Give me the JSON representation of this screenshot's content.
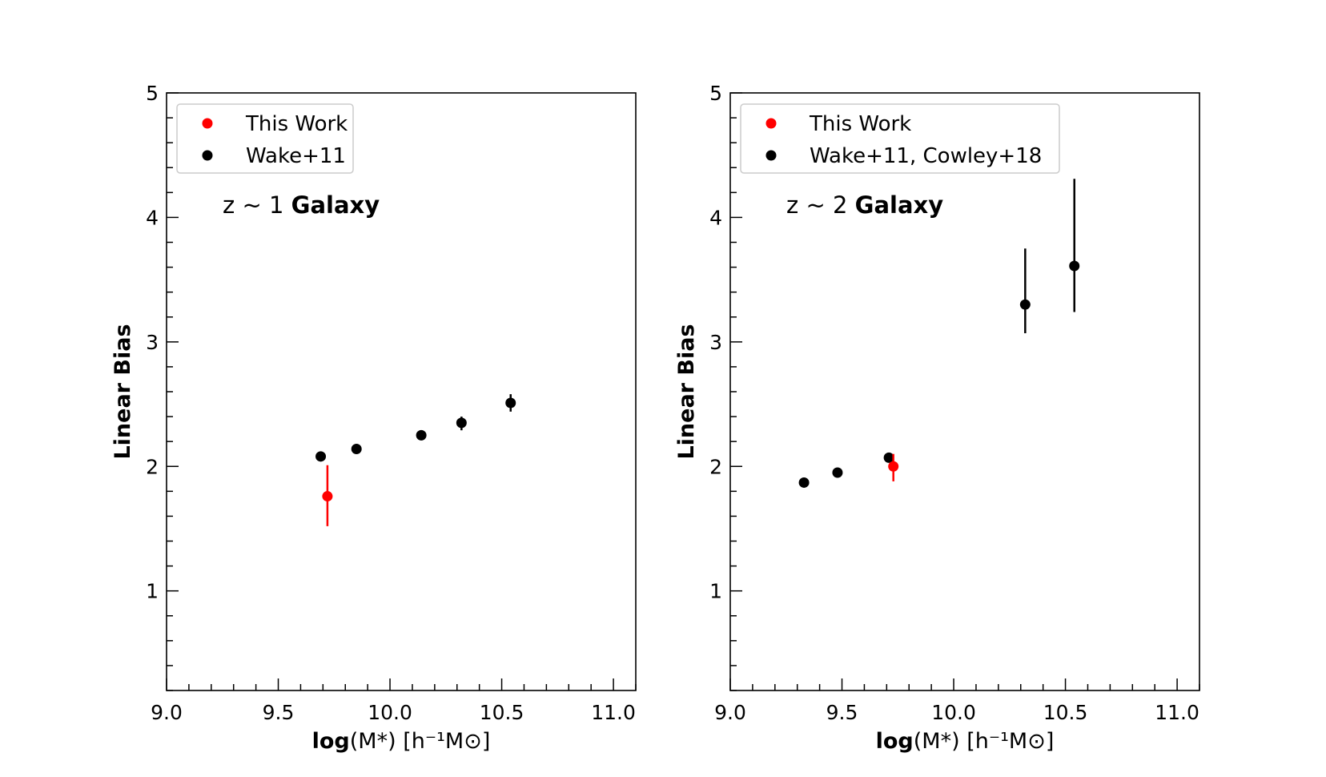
{
  "figure": {
    "background": "#ffffff"
  },
  "chart_data": [
    {
      "type": "scatter",
      "panel": "left",
      "annotation_prefix": "z ~ 1",
      "annotation_bold": "Galaxy",
      "xlabel_bold": "log",
      "xlabel_rest": "(M*) [h⁻¹M⊙]",
      "ylabel": "Linear Bias",
      "xlim": [
        9.0,
        11.1
      ],
      "ylim": [
        0.2,
        5.0
      ],
      "xticks": [
        9.0,
        9.5,
        10.0,
        10.5,
        11.0
      ],
      "xtick_labels": [
        "9.0",
        "9.5",
        "10.0",
        "10.5",
        "11.0"
      ],
      "yticks": [
        1,
        2,
        3,
        4,
        5
      ],
      "ytick_labels": [
        "1",
        "2",
        "3",
        "4",
        "5"
      ],
      "legend_placement": "top-left",
      "series": [
        {
          "name": "This Work",
          "color": "#ff0000",
          "points": [
            {
              "x": 9.72,
              "y": 1.76,
              "yerr_low": 0.24,
              "yerr_high": 0.25
            }
          ]
        },
        {
          "name": "Wake+11",
          "color": "#000000",
          "points": [
            {
              "x": 9.69,
              "y": 2.08,
              "yerr_low": 0.02,
              "yerr_high": 0.02
            },
            {
              "x": 9.85,
              "y": 2.14,
              "yerr_low": 0.02,
              "yerr_high": 0.02
            },
            {
              "x": 10.14,
              "y": 2.25,
              "yerr_low": 0.04,
              "yerr_high": 0.04
            },
            {
              "x": 10.32,
              "y": 2.35,
              "yerr_low": 0.06,
              "yerr_high": 0.05
            },
            {
              "x": 10.54,
              "y": 2.51,
              "yerr_low": 0.07,
              "yerr_high": 0.07
            }
          ]
        }
      ]
    },
    {
      "type": "scatter",
      "panel": "right",
      "annotation_prefix": "z ~ 2",
      "annotation_bold": "Galaxy",
      "xlabel_bold": "log",
      "xlabel_rest": "(M*) [h⁻¹M⊙]",
      "ylabel": "Linear Bias",
      "xlim": [
        9.0,
        11.1
      ],
      "ylim": [
        0.2,
        5.0
      ],
      "xticks": [
        9.0,
        9.5,
        10.0,
        10.5,
        11.0
      ],
      "xtick_labels": [
        "9.0",
        "9.5",
        "10.0",
        "10.5",
        "11.0"
      ],
      "yticks": [
        1,
        2,
        3,
        4,
        5
      ],
      "ytick_labels": [
        "1",
        "2",
        "3",
        "4",
        "5"
      ],
      "legend_placement": "top-left",
      "series": [
        {
          "name": "This Work",
          "color": "#ff0000",
          "points": [
            {
              "x": 9.73,
              "y": 2.0,
              "yerr_low": 0.12,
              "yerr_high": 0.1
            }
          ]
        },
        {
          "name": "Wake+11, Cowley+18",
          "color": "#000000",
          "points": [
            {
              "x": 9.33,
              "y": 1.87,
              "yerr_low": 0.02,
              "yerr_high": 0.02
            },
            {
              "x": 9.48,
              "y": 1.95,
              "yerr_low": 0.02,
              "yerr_high": 0.02
            },
            {
              "x": 9.71,
              "y": 2.07,
              "yerr_low": 0.02,
              "yerr_high": 0.02
            },
            {
              "x": 10.32,
              "y": 3.3,
              "yerr_low": 0.23,
              "yerr_high": 0.45
            },
            {
              "x": 10.54,
              "y": 3.61,
              "yerr_low": 0.37,
              "yerr_high": 0.7
            }
          ]
        }
      ]
    }
  ]
}
